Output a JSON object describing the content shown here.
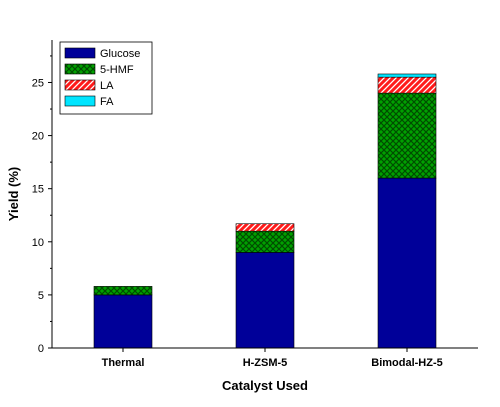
{
  "chart_data": {
    "type": "bar",
    "stacked": true,
    "categories": [
      "Thermal",
      "H-ZSM-5",
      "Bimodal-HZ-5"
    ],
    "series": [
      {
        "name": "Glucose",
        "values": [
          5.0,
          9.0,
          16.0
        ],
        "color": "#000099",
        "pattern": "solid"
      },
      {
        "name": "5-HMF",
        "values": [
          0.8,
          2.0,
          8.0
        ],
        "color": "#009900",
        "pattern": "crosshatch"
      },
      {
        "name": "LA",
        "values": [
          0.0,
          0.7,
          1.5
        ],
        "color": "#ff0000",
        "pattern": "diagonal"
      },
      {
        "name": "FA",
        "values": [
          0.0,
          0.0,
          0.3
        ],
        "color": "#00e5ff",
        "pattern": "solid"
      }
    ],
    "xlabel": "Catalyst Used",
    "ylabel": "Yield (%)",
    "ylim": [
      0,
      29
    ],
    "yticks": [
      "0",
      "5",
      "10",
      "15",
      "20",
      "25"
    ],
    "grid": false,
    "legend_position": "top-left"
  }
}
